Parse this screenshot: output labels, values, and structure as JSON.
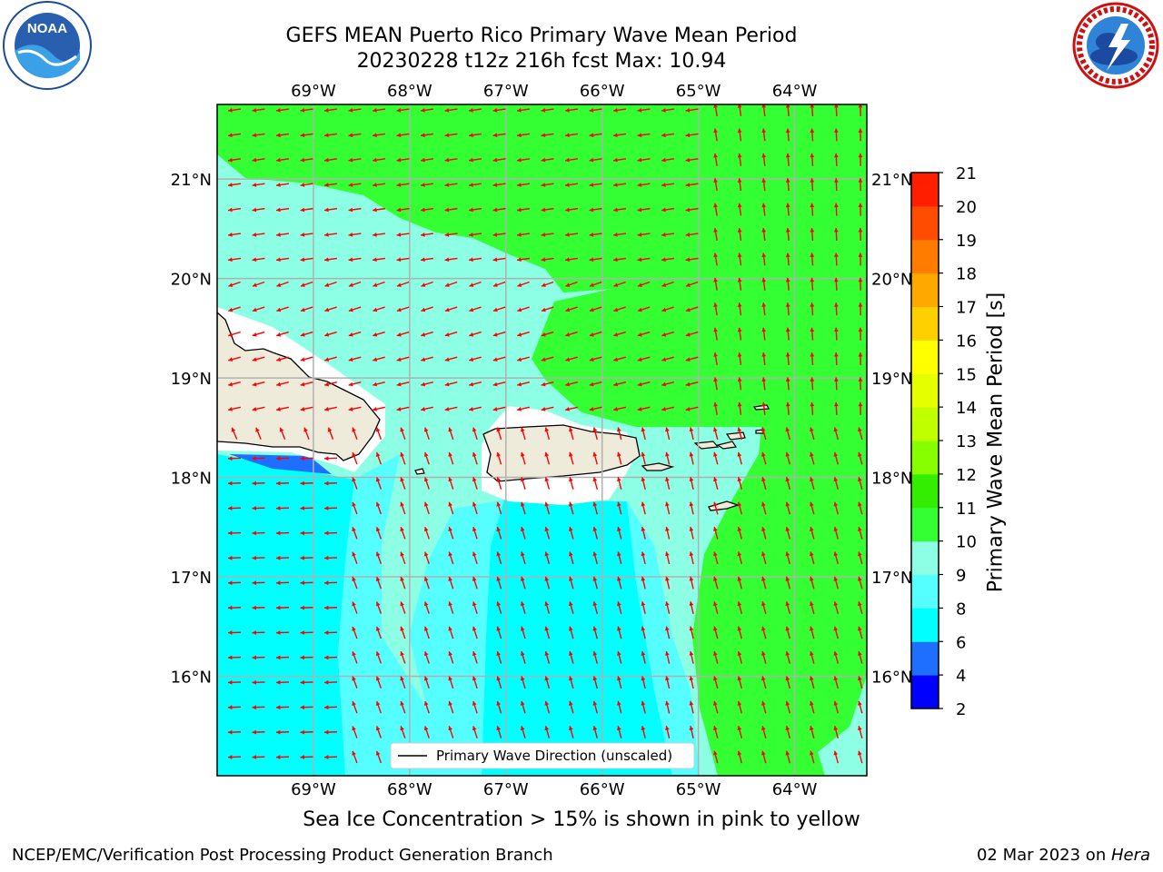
{
  "header": {
    "title_line1": "GEFS MEAN Puerto Rico Primary Wave Mean Period",
    "title_line2": "20230228 t12z 216h fcst   Max: 10.94"
  },
  "logos": {
    "left": {
      "icon": "noaa-logo-icon",
      "text": "NOAA"
    },
    "right": {
      "icon": "national-weather-service-logo-icon"
    }
  },
  "map": {
    "lon_ticks": [
      "69°W",
      "68°W",
      "67°W",
      "66°W",
      "65°W",
      "64°W"
    ],
    "lat_ticks": [
      "21°N",
      "20°N",
      "19°N",
      "18°N",
      "17°N",
      "16°N"
    ],
    "lon_range": [
      -70.0,
      -63.25
    ],
    "lat_range": [
      15.0,
      21.75
    ],
    "grid": true,
    "arrow_color": "#ff0000",
    "legend": {
      "label": "Primary Wave Direction (unscaled)",
      "placement": "bottom-center"
    }
  },
  "colorbar": {
    "label": "Primary Wave Mean Period [s]",
    "ticks": [
      "2",
      "4",
      "6",
      "8",
      "9",
      "10",
      "11",
      "12",
      "13",
      "14",
      "15",
      "16",
      "17",
      "18",
      "19",
      "20",
      "21"
    ],
    "colors": [
      "#0000ff",
      "#1e6eff",
      "#00ffff",
      "#55ffff",
      "#8cffe4",
      "#33ff33",
      "#33ee00",
      "#88ff00",
      "#c0ff00",
      "#e6ff00",
      "#ffff00",
      "#ffd000",
      "#ffa800",
      "#ff7c00",
      "#ff4c00",
      "#ff1e00"
    ]
  },
  "caption": "Sea Ice Concentration > 15% is shown in pink to yellow",
  "footer": {
    "left": "NCEP/EMC/Verification Post Processing Product Generation Branch",
    "right_date": "02 Mar 2023 on ",
    "right_host": "Hera"
  }
}
